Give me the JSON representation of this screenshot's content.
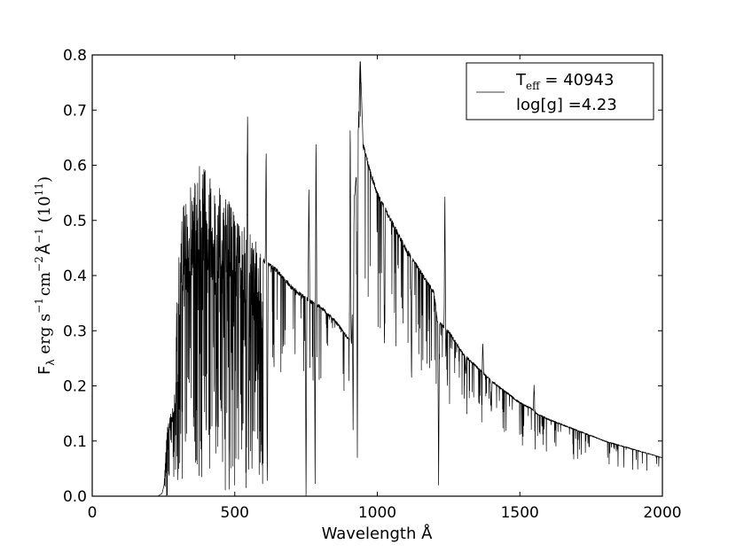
{
  "chart_data": {
    "type": "line",
    "title": "",
    "xlabel": "Wavelength Å",
    "ylabel": {
      "flux_symbol": "F",
      "flux_subscript": "λ",
      "units_erg_s": "erg s",
      "exp_s": "−1",
      "units_cm": "cm",
      "exp_cm": "−2",
      "units_angstrom": "Å",
      "exp_angstrom": "−1",
      "scale_open": "(10",
      "scale_exp": "11",
      "scale_close": ")"
    },
    "xlim": [
      0,
      2000
    ],
    "ylim": [
      0,
      0.8
    ],
    "xticks": [
      "0",
      "500",
      "1000",
      "1500",
      "2000"
    ],
    "yticks": [
      "0.0",
      "0.1",
      "0.2",
      "0.3",
      "0.4",
      "0.5",
      "0.6",
      "0.7",
      "0.8"
    ],
    "grid": false,
    "legend_placement": "top-right",
    "legend": {
      "teff_symbol": "T",
      "teff_subscript": "eff",
      "teff_value": " = 40943",
      "logg": "log[g] =4.23"
    },
    "line_color": "#000000",
    "envelope": {
      "x": [
        0,
        230,
        245,
        252,
        255,
        262,
        270,
        280,
        290,
        300,
        320,
        350,
        380,
        410,
        450,
        500,
        530,
        560,
        600,
        650,
        700,
        750,
        780,
        800,
        850,
        880,
        900,
        910,
        920,
        930,
        940,
        950,
        970,
        1000,
        1050,
        1100,
        1150,
        1200,
        1210,
        1250,
        1300,
        1400,
        1500,
        1540,
        1560,
        1600,
        1700,
        1800,
        1900,
        2000
      ],
      "y": [
        0,
        0,
        0.005,
        0.02,
        0.05,
        0.12,
        0.14,
        0.16,
        0.2,
        0.42,
        0.5,
        0.55,
        0.58,
        0.56,
        0.53,
        0.5,
        0.47,
        0.45,
        0.43,
        0.41,
        0.38,
        0.36,
        0.35,
        0.345,
        0.32,
        0.3,
        0.285,
        0.28,
        0.55,
        0.6,
        0.8,
        0.64,
        0.6,
        0.55,
        0.5,
        0.45,
        0.41,
        0.37,
        0.32,
        0.3,
        0.26,
        0.21,
        0.17,
        0.16,
        0.15,
        0.14,
        0.12,
        0.1,
        0.085,
        0.07
      ]
    },
    "dense_absorption_region": [
      290,
      600
    ],
    "absorption_lines": [
      {
        "x": 548,
        "y": 0.005
      },
      {
        "x": 614,
        "y": 0.0
      },
      {
        "x": 750,
        "y": 0.0
      },
      {
        "x": 782,
        "y": 0.0
      },
      {
        "x": 915,
        "y": 0.12
      },
      {
        "x": 930,
        "y": 0.07
      },
      {
        "x": 1025,
        "y": 0.26
      },
      {
        "x": 1120,
        "y": 0.2
      },
      {
        "x": 1215,
        "y": 0.02
      },
      {
        "x": 1240,
        "y": 0.25
      },
      {
        "x": 1310,
        "y": 0.22
      },
      {
        "x": 1400,
        "y": 0.15
      }
    ],
    "emission_lines": [
      {
        "x": 545,
        "y": 0.73
      },
      {
        "x": 610,
        "y": 0.635
      },
      {
        "x": 760,
        "y": 0.57
      },
      {
        "x": 785,
        "y": 0.66
      },
      {
        "x": 905,
        "y": 0.69
      },
      {
        "x": 1237,
        "y": 0.56
      },
      {
        "x": 1370,
        "y": 0.28
      },
      {
        "x": 1550,
        "y": 0.205
      }
    ]
  }
}
